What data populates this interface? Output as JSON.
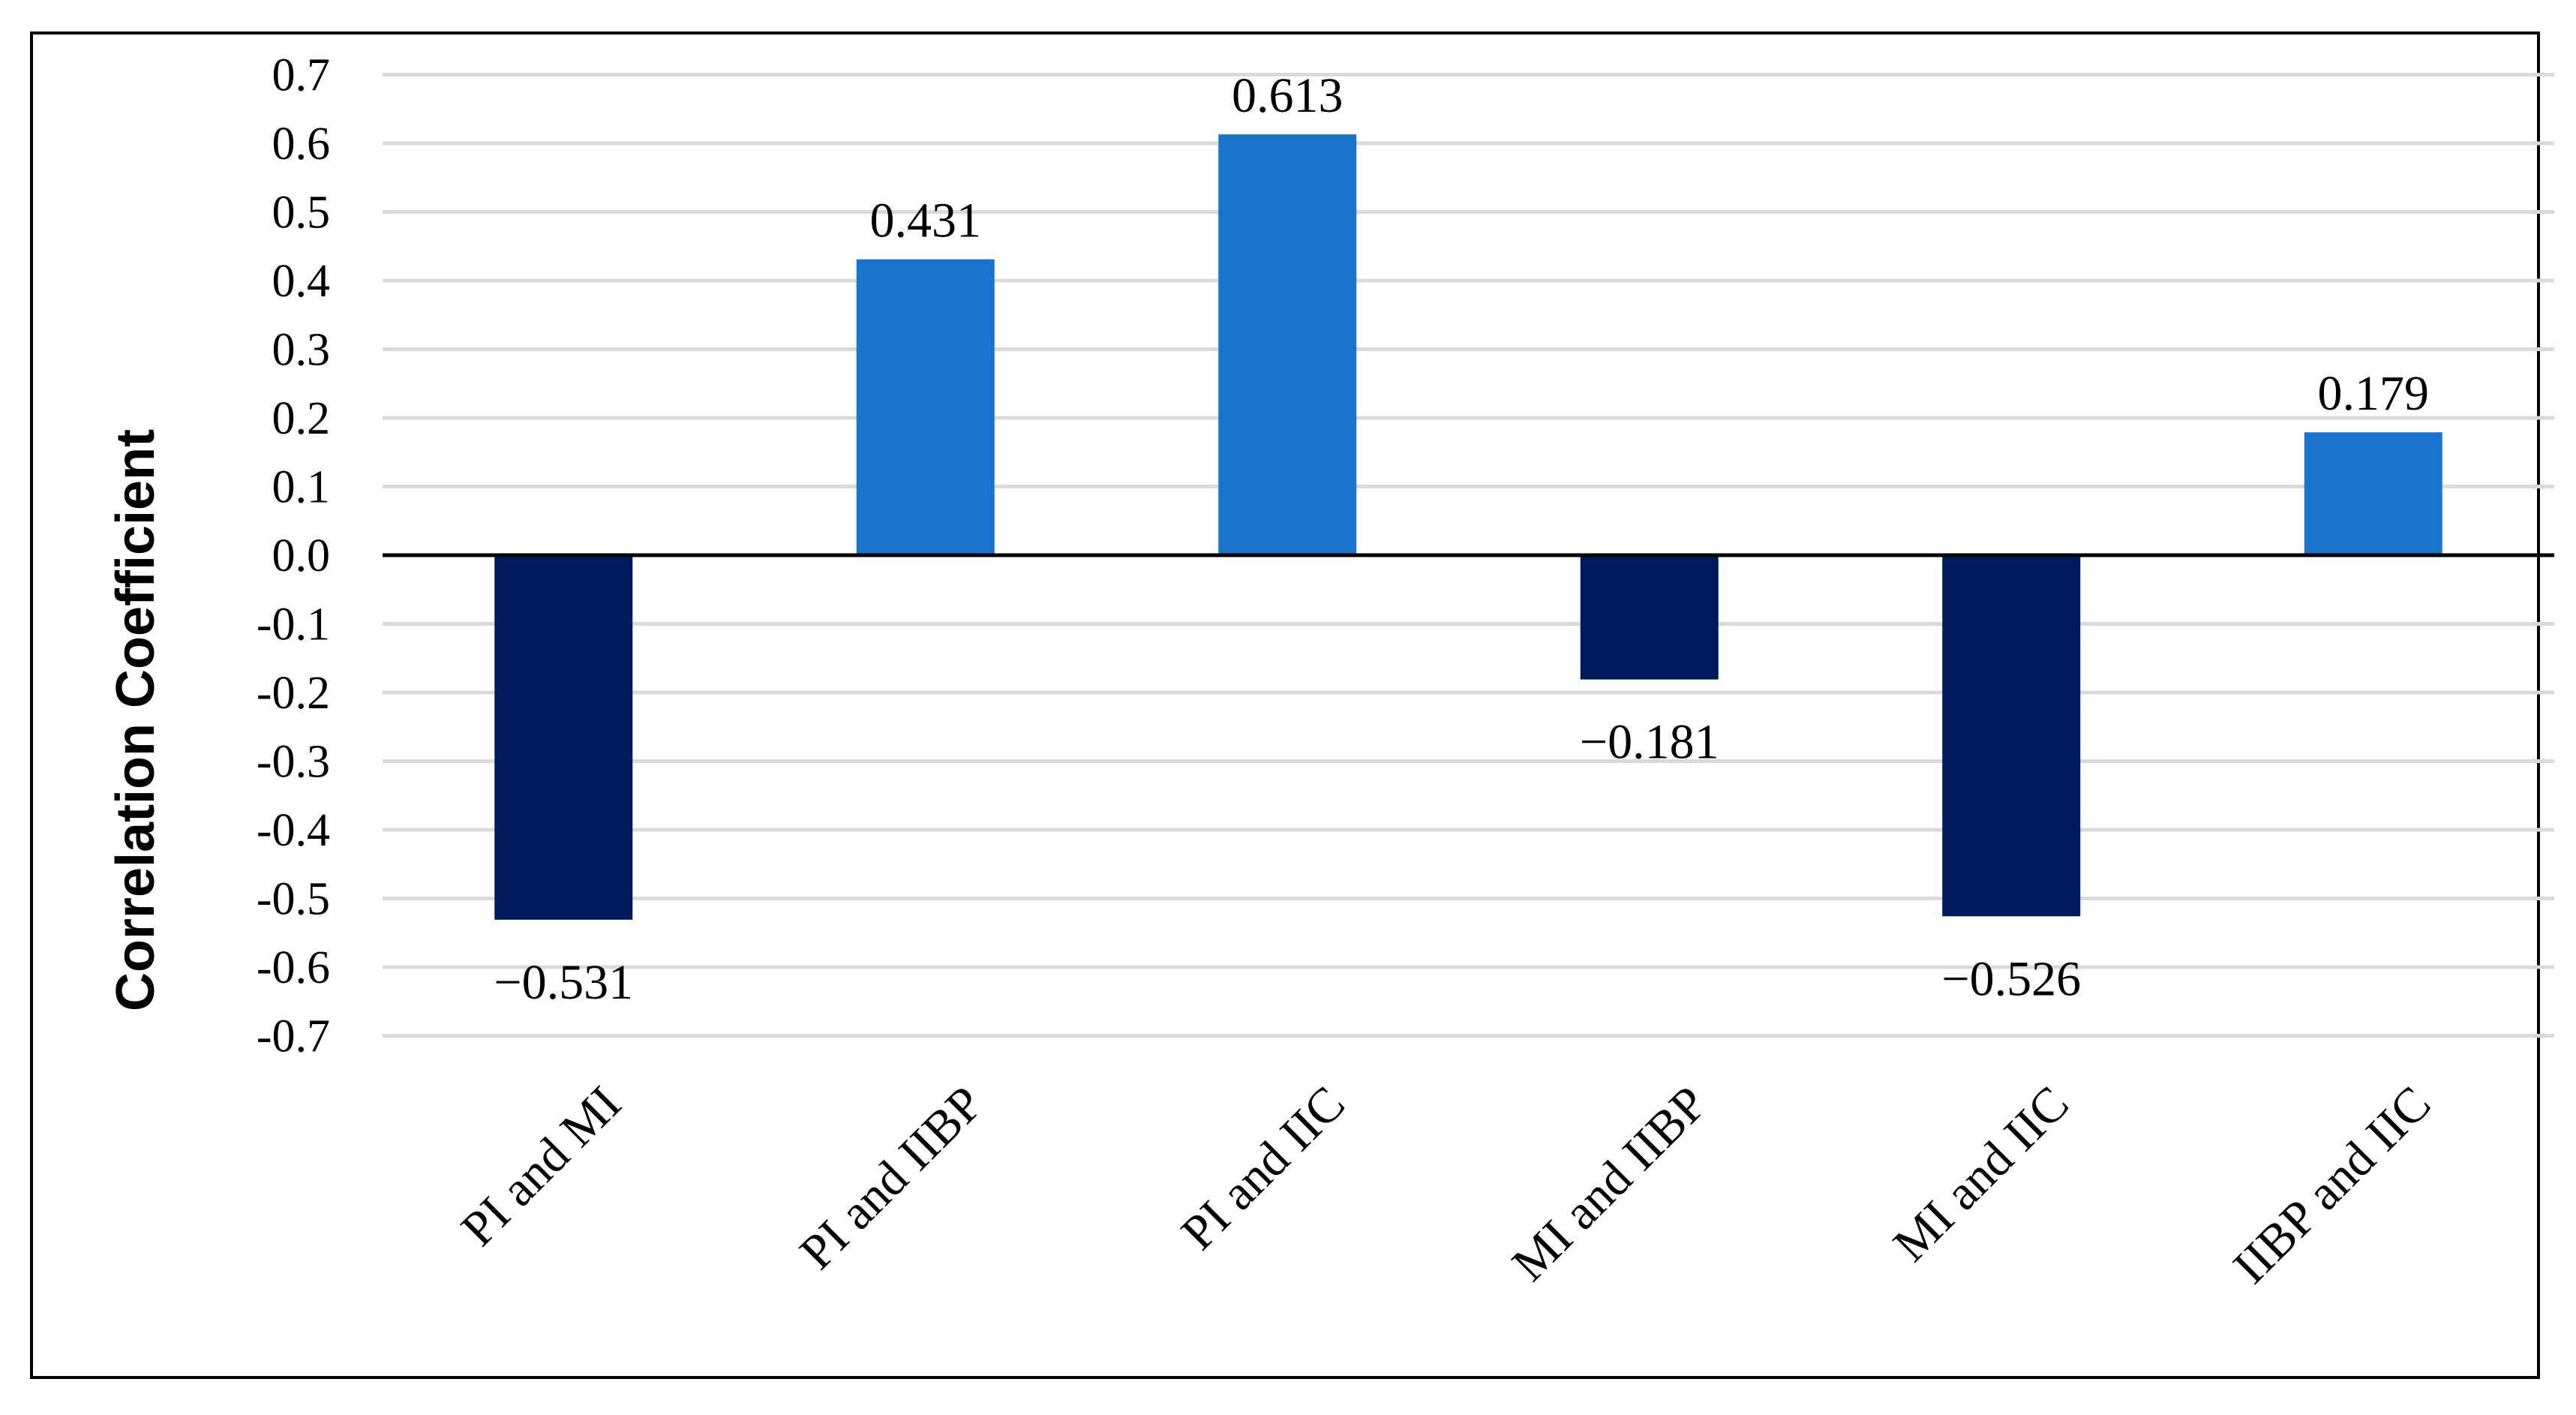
{
  "chart_data": {
    "type": "bar",
    "categories": [
      "PI and MI",
      "PI and IIBP",
      "PI and IIC",
      "MI and IIBP",
      "MI and IIC",
      "IIBP and IIC"
    ],
    "values": [
      -0.531,
      0.431,
      0.613,
      -0.181,
      -0.526,
      0.179
    ],
    "data_labels": [
      "−0.531",
      "0.431",
      "0.613",
      "−0.181",
      "−0.526",
      "0.179"
    ],
    "y_ticks": [
      "0.7",
      "0.6",
      "0.5",
      "0.4",
      "0.3",
      "0.2",
      "0.1",
      "0.0",
      "-0.1",
      "-0.2",
      "-0.3",
      "-0.4",
      "-0.5",
      "-0.6",
      "-0.7"
    ],
    "ylabel": "Correlation Coefficient",
    "xlabel": "",
    "title": "",
    "ylim": [
      -0.7,
      0.7
    ],
    "grid": true,
    "legend": "none",
    "colors": {
      "positive": "#1874cd",
      "negative": "#001a5e"
    }
  }
}
